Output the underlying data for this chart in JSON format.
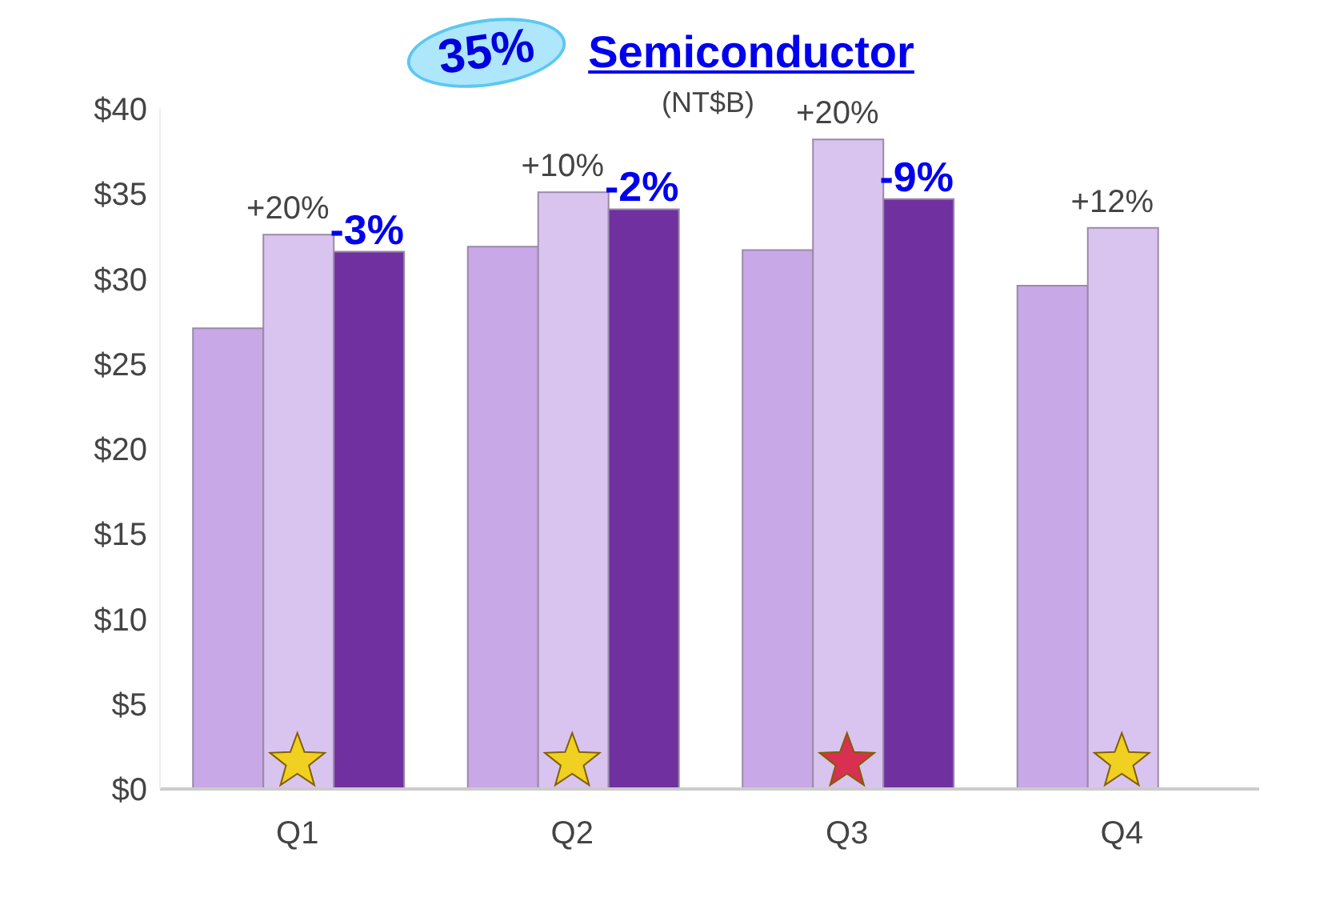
{
  "chart_data": {
    "type": "bar",
    "title": "Semiconductor",
    "subtitle": "(NT$B)",
    "annotations": [
      "35%",
      {
        "text": "+20%",
        "x": "Q1",
        "y": 32.6
      },
      {
        "text": "+10%",
        "x": "Q2",
        "y": 35.1
      },
      {
        "text": "+20%",
        "x": "Q3",
        "y": 38.2
      },
      {
        "text": "+12%",
        "x": "Q4",
        "y": 33.0
      },
      "-3%",
      "-2%",
      "-9%"
    ],
    "categories": [
      "Q1",
      "Q2",
      "Q3",
      "Q4"
    ],
    "series": [
      {
        "color": "#c8a8e6",
        "values": [
          27.1,
          31.9,
          31.7,
          29.6
        ]
      },
      {
        "color": "#d9c4ef",
        "values": [
          32.6,
          35.1,
          38.2,
          33.0
        ]
      },
      {
        "color": "#7030a0",
        "values": [
          31.6,
          34.1,
          34.7,
          null
        ]
      }
    ],
    "ylim": [
      0,
      40
    ],
    "yticks": [
      {
        "value": 0,
        "label": "$0"
      },
      {
        "value": 5,
        "label": "$5"
      },
      {
        "value": 10,
        "label": "$10"
      },
      {
        "value": 15,
        "label": "$15"
      },
      {
        "value": 20,
        "label": "$20"
      },
      {
        "value": 25,
        "label": "$25"
      },
      {
        "value": 30,
        "label": "$30"
      },
      {
        "value": 35,
        "label": "$35"
      },
      {
        "value": 40,
        "label": "$40"
      }
    ],
    "grid": false,
    "legend": false
  }
}
